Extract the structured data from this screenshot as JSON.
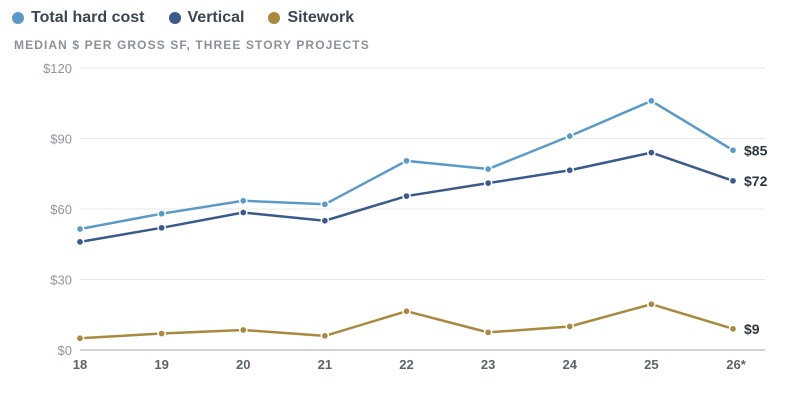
{
  "legend": [
    {
      "name": "Total hard cost",
      "color": "#5b9ac7"
    },
    {
      "name": "Vertical",
      "color": "#3b5a8c"
    },
    {
      "name": "Sitework",
      "color": "#a8893f"
    }
  ],
  "subtitle": "MEDIAN $ PER GROSS SF, THREE STORY PROJECTS",
  "chart_data": {
    "type": "line",
    "title": "",
    "subtitle": "MEDIAN $ PER GROSS SF, THREE STORY PROJECTS",
    "x": [
      "18",
      "19",
      "20",
      "21",
      "22",
      "23",
      "24",
      "25",
      "26*"
    ],
    "ylim": [
      0,
      120
    ],
    "yticks": [
      0,
      30,
      60,
      90,
      120
    ],
    "ytick_labels": [
      "$0",
      "$30",
      "$60",
      "$90",
      "$120"
    ],
    "grid": true,
    "legend_position": "top-left",
    "series": [
      {
        "name": "Total hard cost",
        "color": "#5b9ac7",
        "values": [
          51.5,
          58,
          63.5,
          62,
          80.5,
          77,
          91,
          106,
          85
        ],
        "end_label": "$85"
      },
      {
        "name": "Vertical",
        "color": "#3b5a8c",
        "values": [
          46,
          52,
          58.5,
          55,
          65.5,
          71,
          76.5,
          84,
          72
        ],
        "end_label": "$72"
      },
      {
        "name": "Sitework",
        "color": "#a8893f",
        "values": [
          5,
          7,
          8.5,
          6,
          16.5,
          7.5,
          10,
          19.5,
          9
        ],
        "end_label": "$9"
      }
    ]
  }
}
